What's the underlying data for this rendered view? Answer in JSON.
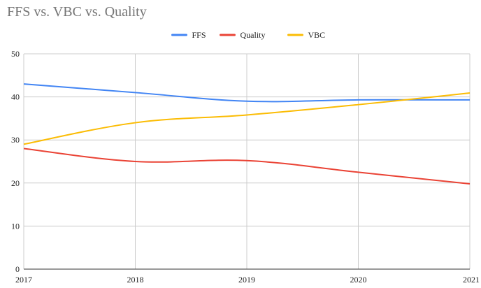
{
  "chart_data": {
    "type": "line",
    "title": "FFS vs. VBC vs. Quality",
    "xlabel": "",
    "ylabel": "",
    "x": [
      "2017",
      "2018",
      "2019",
      "2020",
      "2021"
    ],
    "ylim": [
      0,
      50
    ],
    "yticks": [
      0,
      10,
      20,
      30,
      40,
      50
    ],
    "grid": true,
    "legend_position": "top",
    "smooth": true,
    "series": [
      {
        "name": "FFS",
        "color": "#4285f4",
        "values": [
          43,
          41,
          39,
          39.3,
          39.3
        ]
      },
      {
        "name": "Quality",
        "color": "#ea4335",
        "values": [
          28,
          25,
          25.2,
          22.5,
          19.8
        ]
      },
      {
        "name": "VBC",
        "color": "#fbbc04",
        "values": [
          29,
          34,
          35.8,
          38.2,
          40.9
        ]
      }
    ]
  }
}
